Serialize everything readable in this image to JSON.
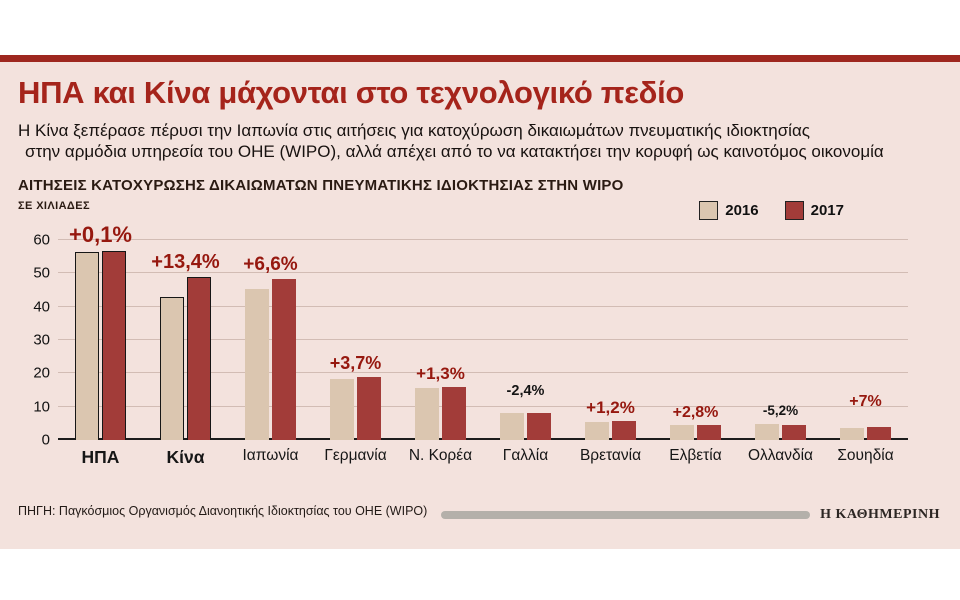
{
  "page": {
    "title": "ΗΠΑ και Κίνα μάχονται στο τεχνολογικό πεδίο",
    "subtitle_line1": "Η Κίνα ξεπέρασε πέρυσι την Ιαπωνία στις αιτήσεις για κατοχύρωση δικαιωμάτων πνευματικής ιδιοκτησίας",
    "subtitle_line2": "στην αρμόδια υπηρεσία του ΟΗΕ (WIPO), αλλά απέχει από το να κατακτήσει την κορυφή ως καινοτόμος οικονομία",
    "source": "ΠΗΓΗ: Παγκόσμιος Οργανισμός Διανοητικής Ιδιοκτησίας του ΟΗΕ (WIPO)",
    "brand": "Η ΚΑΘΗΜΕΡΙΝΗ"
  },
  "colors": {
    "background": "#f3e2dd",
    "accent_red": "#a5241b",
    "bar_2016": "#dbc6b0",
    "bar_2017": "#a23c39",
    "negative_label": "#141414"
  },
  "chart_data": {
    "type": "bar",
    "title": "ΑΙΤΗΣΕΙΣ ΚΑΤΟΧΥΡΩΣΗΣ ΔΙΚΑΙΩΜΑΤΩΝ ΠΝΕΥΜΑΤΙΚΗΣ ΙΔΙΟΚΤΗΣΙΑΣ ΣΤΗΝ WIPO",
    "units_label": "ΣΕ ΧΙΛΙΑΔΕΣ",
    "ylim": [
      0,
      60
    ],
    "yticks": [
      0,
      10,
      20,
      30,
      40,
      50,
      60
    ],
    "grid": true,
    "legend_position": "top-right",
    "legend": [
      {
        "name": "2016",
        "color": "#dbc6b0"
      },
      {
        "name": "2017",
        "color": "#a23c39"
      }
    ],
    "categories": [
      "ΗΠΑ",
      "Κίνα",
      "Ιαπωνία",
      "Γερμανία",
      "Ν. Κορέα",
      "Γαλλία",
      "Βρετανία",
      "Ελβετία",
      "Ολλανδία",
      "Σουηδία"
    ],
    "series": [
      {
        "name": "2016",
        "values": [
          56.5,
          43.0,
          45.2,
          18.3,
          15.6,
          8.2,
          5.5,
          4.4,
          4.7,
          3.7
        ]
      },
      {
        "name": "2017",
        "values": [
          56.6,
          48.8,
          48.2,
          19.0,
          15.8,
          8.0,
          5.6,
          4.5,
          4.4,
          4.0
        ]
      }
    ],
    "change_labels": [
      "+0,1%",
      "+13,4%",
      "+6,6%",
      "+3,7%",
      "+1,3%",
      "-2,4%",
      "+1,2%",
      "+2,8%",
      "-5,2%",
      "+7%"
    ],
    "highlighted_categories": [
      "ΗΠΑ",
      "Κίνα"
    ]
  }
}
